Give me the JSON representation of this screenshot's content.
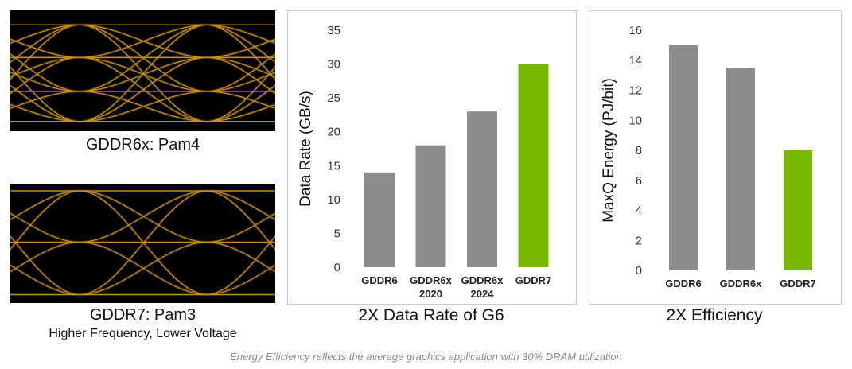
{
  "eye_diagrams": [
    {
      "caption": "GDDR6x: Pam4",
      "subcaption": ""
    },
    {
      "caption": "GDDR7: Pam3",
      "subcaption": "Higher Frequency, Lower Voltage"
    }
  ],
  "colors": {
    "gray_bar": "#8c8c8c",
    "green_bar": "#76b900",
    "eye_trace": "#e0a321",
    "eye_background": "#000000"
  },
  "chart_data": [
    {
      "type": "bar",
      "title": "2X Data Rate of G6",
      "ylabel": "Data Rate (GB/s)",
      "xlabel": "",
      "categories": [
        [
          "GDDR6"
        ],
        [
          "GDDR6x",
          "2020"
        ],
        [
          "GDDR6x",
          "2024"
        ],
        [
          "GDDR7"
        ]
      ],
      "values": [
        14,
        18,
        23,
        30
      ],
      "bar_colors": [
        "gray",
        "gray",
        "gray",
        "green"
      ],
      "ylim": [
        0,
        35
      ],
      "yticks": [
        0,
        5,
        10,
        15,
        20,
        25,
        30,
        35
      ],
      "grid": false,
      "legend": "none"
    },
    {
      "type": "bar",
      "title": "2X Efficiency",
      "ylabel": "MaxQ Energy (PJ/bit)",
      "xlabel": "",
      "categories": [
        [
          "GDDR6"
        ],
        [
          "GDDR6x"
        ],
        [
          "GDDR7"
        ]
      ],
      "values": [
        15,
        13.5,
        8
      ],
      "bar_colors": [
        "gray",
        "gray",
        "green"
      ],
      "ylim": [
        0,
        16
      ],
      "yticks": [
        0,
        2,
        4,
        6,
        8,
        10,
        12,
        14,
        16
      ],
      "grid": false,
      "legend": "none"
    }
  ],
  "footnote": "Energy Efficiency reflects the average graphics application with 30% DRAM utilization"
}
